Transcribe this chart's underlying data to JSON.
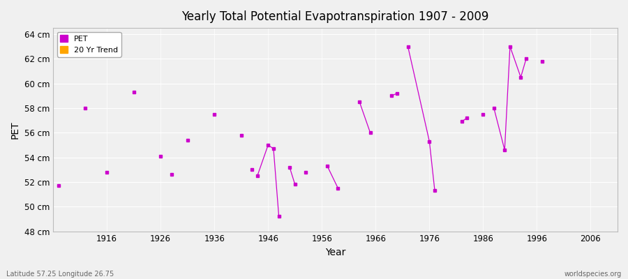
{
  "title": "Yearly Total Potential Evapotranspiration 1907 - 2009",
  "xlabel": "Year",
  "ylabel": "PET",
  "subtitle_left": "Latitude 57.25 Longitude 26.75",
  "subtitle_right": "worldspecies.org",
  "xlim": [
    1906,
    2011
  ],
  "ylim": [
    48,
    64.5
  ],
  "ytick_labels": [
    "48 cm",
    "50 cm",
    "52 cm",
    "54 cm",
    "56 cm",
    "58 cm",
    "60 cm",
    "62 cm",
    "64 cm"
  ],
  "ytick_values": [
    48,
    50,
    52,
    54,
    56,
    58,
    60,
    62,
    64
  ],
  "xtick_values": [
    1916,
    1926,
    1936,
    1946,
    1956,
    1966,
    1976,
    1986,
    1996,
    2006
  ],
  "pet_color": "#CC00CC",
  "trend_color": "#FFA500",
  "background_color": "#F0F0F0",
  "grid_color": "#FFFFFF",
  "legend_items": [
    "PET",
    "20 Yr Trend"
  ],
  "pet_segments": [
    [
      [
        1907,
        51.7
      ]
    ],
    [
      [
        1912,
        58.0
      ]
    ],
    [
      [
        1916,
        52.8
      ]
    ],
    [
      [
        1921,
        59.3
      ]
    ],
    [
      [
        1926,
        54.1
      ]
    ],
    [
      [
        1928,
        52.6
      ]
    ],
    [
      [
        1931,
        55.4
      ]
    ],
    [
      [
        1936,
        57.5
      ]
    ],
    [
      [
        1941,
        55.8
      ]
    ],
    [
      [
        1943,
        53.0
      ]
    ],
    [
      [
        1944,
        52.5
      ],
      [
        1946,
        55.0
      ],
      [
        1947,
        54.7
      ],
      [
        1948,
        49.2
      ]
    ],
    [
      [
        1950,
        53.2
      ],
      [
        1951,
        51.8
      ]
    ],
    [
      [
        1953,
        52.8
      ]
    ],
    [
      [
        1957,
        53.3
      ],
      [
        1959,
        51.5
      ]
    ],
    [
      [
        1963,
        58.5
      ],
      [
        1965,
        56.0
      ]
    ],
    [
      [
        1969,
        59.0
      ],
      [
        1970,
        59.2
      ]
    ],
    [
      [
        1972,
        63.0
      ],
      [
        1976,
        55.3
      ],
      [
        1977,
        51.3
      ]
    ],
    [
      [
        1982,
        56.9
      ],
      [
        1983,
        57.2
      ]
    ],
    [
      [
        1986,
        57.5
      ]
    ],
    [
      [
        1988,
        58.0
      ],
      [
        1990,
        54.6
      ],
      [
        1991,
        63.0
      ],
      [
        1993,
        60.5
      ],
      [
        1994,
        62.0
      ]
    ],
    [
      [
        1997,
        61.8
      ]
    ]
  ]
}
